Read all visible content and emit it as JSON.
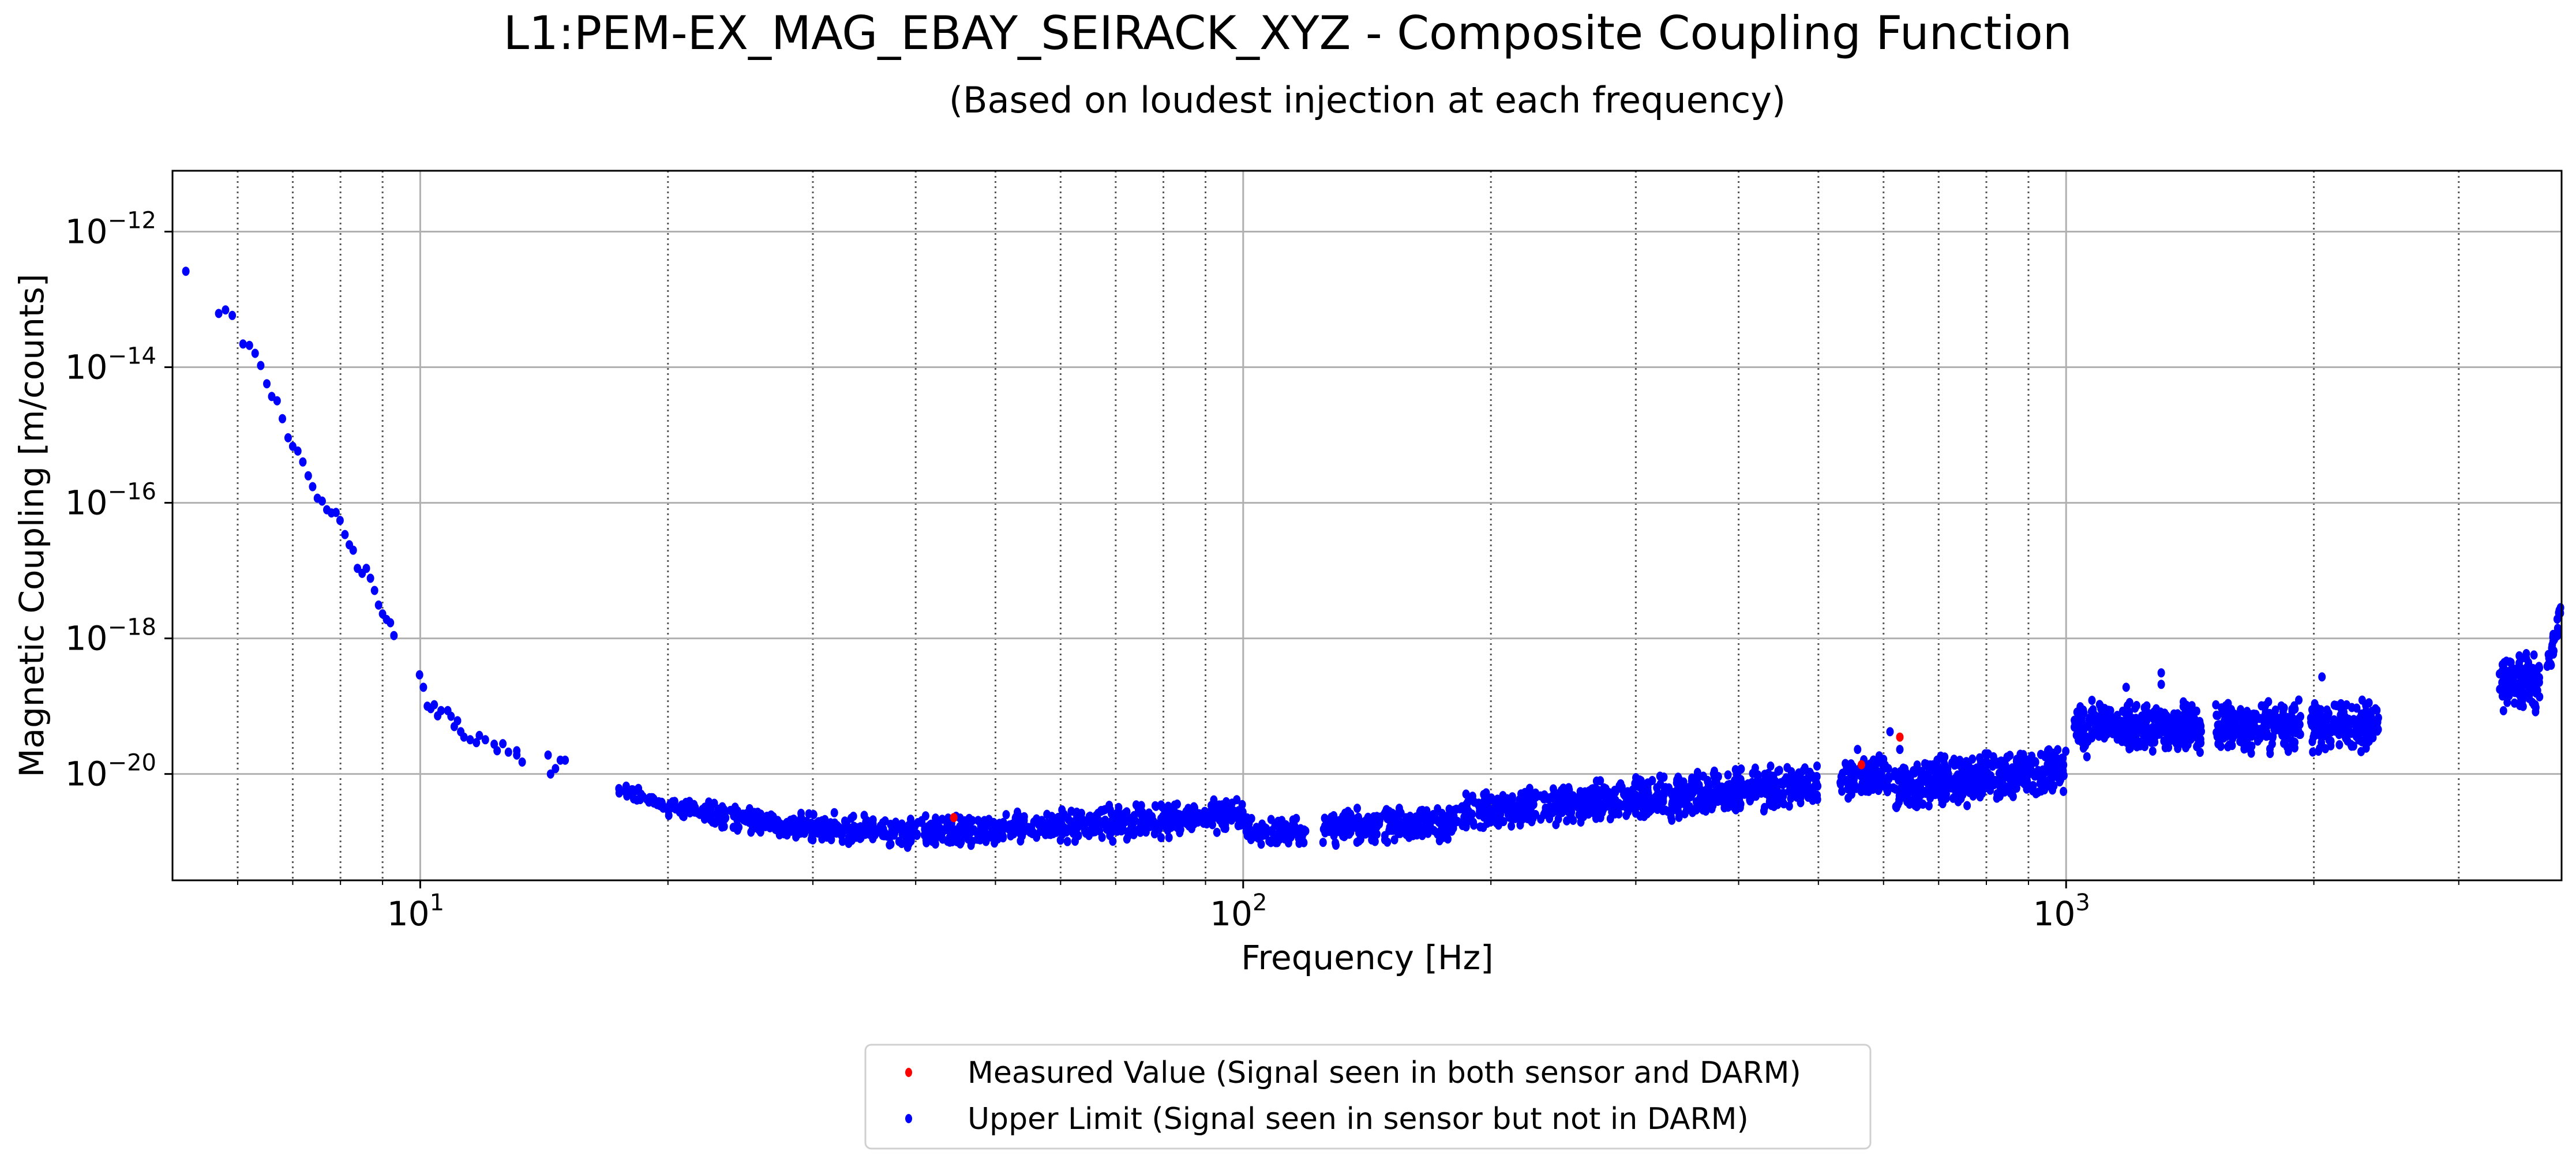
{
  "chart_data": {
    "type": "scatter",
    "title": "L1:PEM-EX_MAG_EBAY_SEIRACK_XYZ - Composite Coupling Function",
    "subtitle": "(Based on loudest injection at each frequency)",
    "xlabel": "Frequency [Hz]",
    "ylabel": "Magnetic Coupling [m/counts]",
    "xscale": "log",
    "yscale": "log",
    "xlim": [
      5.0,
      4000
    ],
    "ylim": [
      2.7e-22,
      7.9e-12
    ],
    "grid": true,
    "xticks": [
      10,
      100,
      1000
    ],
    "xtick_labels": [
      {
        "base": "10",
        "exp": "1"
      },
      {
        "base": "10",
        "exp": "2"
      },
      {
        "base": "10",
        "exp": "3"
      }
    ],
    "yticks": [
      1e-12,
      1e-14,
      1e-16,
      1e-18,
      1e-20
    ],
    "ytick_labels": [
      {
        "base": "10",
        "exp": "−12"
      },
      {
        "base": "10",
        "exp": "−14"
      },
      {
        "base": "10",
        "exp": "−16"
      },
      {
        "base": "10",
        "exp": "−18"
      },
      {
        "base": "10",
        "exp": "−20"
      }
    ],
    "legend_position": "below-center",
    "series": [
      {
        "name": "Measured Value (Signal seen in both sensor and DARM)",
        "color": "#ff0000",
        "points": [
          [
            44.5,
            2.27e-21
          ],
          [
            564,
            1.37e-20
          ],
          [
            628,
            3.5e-20
          ]
        ]
      },
      {
        "name": "Upper Limit (Signal seen in sensor but not in DARM)",
        "color": "#0000ff",
        "points": [
          [
            5.19,
            2.6e-13
          ],
          [
            5.69,
            6.2e-14
          ],
          [
            5.8,
            7e-14
          ],
          [
            5.91,
            5.8e-14
          ],
          [
            6.09,
            2.2e-14
          ],
          [
            6.2,
            2.1e-14
          ],
          [
            6.3,
            1.6e-14
          ],
          [
            6.4,
            1.06e-14
          ],
          [
            6.51,
            5.7e-15
          ],
          [
            6.6,
            3.7e-15
          ],
          [
            6.7,
            3.2e-15
          ],
          [
            6.8,
            1.74e-15
          ],
          [
            6.91,
            9.1e-16
          ],
          [
            7.0,
            6.8e-16
          ],
          [
            7.1,
            5.8e-16
          ],
          [
            7.2,
            4e-16
          ],
          [
            7.31,
            2.5e-16
          ],
          [
            7.4,
            1.73e-16
          ],
          [
            7.5,
            1.17e-16
          ],
          [
            7.6,
            1.06e-16
          ],
          [
            7.7,
            7.9e-17
          ],
          [
            7.8,
            7.1e-17
          ],
          [
            7.9,
            7.2e-17
          ],
          [
            7.99,
            5.5e-17
          ],
          [
            8.1,
            3.4e-17
          ],
          [
            8.2,
            2.4e-17
          ],
          [
            8.29,
            2e-17
          ],
          [
            8.39,
            1.08e-17
          ],
          [
            8.5,
            9.1e-18
          ],
          [
            8.6,
            1.08e-17
          ],
          [
            8.7,
            7.7e-18
          ],
          [
            8.8,
            5.1e-18
          ],
          [
            8.9,
            3.1e-18
          ],
          [
            9.0,
            2.3e-18
          ],
          [
            9.1,
            1.9e-18
          ],
          [
            9.2,
            1.7e-18
          ],
          [
            9.29,
            1.1e-18
          ],
          [
            9.98,
            2.9e-19
          ],
          [
            10.09,
            1.9e-19
          ],
          [
            10.2,
            1e-19
          ],
          [
            10.3,
            9.2e-20
          ],
          [
            10.4,
            1.05e-19
          ],
          [
            10.5,
            7.2e-20
          ],
          [
            10.6,
            8.6e-20
          ],
          [
            10.8,
            8.6e-20
          ],
          [
            10.9,
            7.1e-20
          ],
          [
            11.0,
            5e-20
          ],
          [
            11.1,
            6.1e-20
          ],
          [
            11.2,
            4.2e-20
          ],
          [
            11.3,
            3.5e-20
          ],
          [
            11.5,
            3.2e-20
          ],
          [
            11.7,
            2.9e-20
          ],
          [
            11.8,
            3.7e-20
          ],
          [
            12.0,
            3.2e-20
          ],
          [
            12.3,
            2.75e-20
          ],
          [
            12.4,
            2.2e-20
          ],
          [
            12.6,
            2.8e-20
          ],
          [
            12.8,
            2.1e-20
          ],
          [
            13.1,
            2.2e-20
          ],
          [
            13.1,
            1.9e-20
          ],
          [
            13.3,
            1.5e-20
          ],
          [
            14.3,
            1.9e-20
          ],
          [
            14.4,
            1e-20
          ],
          [
            14.6,
            1.2e-20
          ],
          [
            14.8,
            1.6e-20
          ],
          [
            15.0,
            1.6e-20
          ],
          [
            558,
            2.3e-20
          ],
          [
            611,
            4.2e-20
          ],
          [
            628,
            2.3e-20
          ],
          [
            1060,
            1.8e-20
          ],
          [
            1183,
            1.9e-19
          ],
          [
            1305,
            3.1e-19
          ],
          [
            1305,
            2.1e-19
          ],
          [
            2046,
            2.7e-19
          ]
        ],
        "dense_bands": [
          {
            "f": [
              17.4,
              20
            ],
            "y": [
              6e-21,
              3.3e-21
            ],
            "spread_decades": 0.15
          },
          {
            "f": [
              20,
              28
            ],
            "y": [
              3.3e-21,
              1.7e-21
            ],
            "spread_decades": 0.25
          },
          {
            "f": [
              28,
              40
            ],
            "y": [
              1.7e-21,
              1.35e-21
            ],
            "spread_decades": 0.3
          },
          {
            "f": [
              40,
              60
            ],
            "y": [
              1.4e-21,
              1.7e-21
            ],
            "spread_decades": 0.3
          },
          {
            "f": [
              60,
              100
            ],
            "y": [
              1.7e-21,
              2.6e-21
            ],
            "spread_decades": 0.35
          },
          {
            "f": [
              100,
              120
            ],
            "y": [
              1.45e-21,
              1.4e-21
            ],
            "spread_decades": 0.3
          },
          {
            "f": [
              125,
              183
            ],
            "y": [
              1.6e-21,
              1.9e-21
            ],
            "spread_decades": 0.35
          },
          {
            "f": [
              183,
              300
            ],
            "y": [
              2.8e-21,
              4.2e-21
            ],
            "spread_decades": 0.4
          },
          {
            "f": [
              300,
              500
            ],
            "y": [
              4.2e-21,
              7.2e-21
            ],
            "spread_decades": 0.45
          },
          {
            "f": [
              530,
              610
            ],
            "y": [
              8e-21,
              1e-20
            ],
            "spread_decades": 0.4
          },
          {
            "f": [
              615,
              1000
            ],
            "y": [
              6.5e-21,
              1.2e-20
            ],
            "spread_decades": 0.5
          },
          {
            "f": [
              1020,
              1460
            ],
            "y": [
              5e-20,
              5e-20
            ],
            "spread_decades": 0.5
          },
          {
            "f": [
              1520,
              1930
            ],
            "y": [
              5e-20,
              5e-20
            ],
            "spread_decades": 0.5
          },
          {
            "f": [
              1980,
              2400
            ],
            "y": [
              5e-20,
              5e-20
            ],
            "spread_decades": 0.5
          },
          {
            "f": [
              3360,
              3770
            ],
            "y": [
              2.2e-19,
              2.2e-19
            ],
            "spread_decades": 0.6
          },
          {
            "f": [
              3840,
              3990
            ],
            "y": [
              3.5e-19,
              2.5e-18
            ],
            "spread_decades": 0.4
          }
        ]
      }
    ]
  },
  "colors": {
    "measured": "#ff0000",
    "upper_limit": "#0000ff",
    "grid": "#b0b0b0",
    "minor_grid": "#555555"
  }
}
